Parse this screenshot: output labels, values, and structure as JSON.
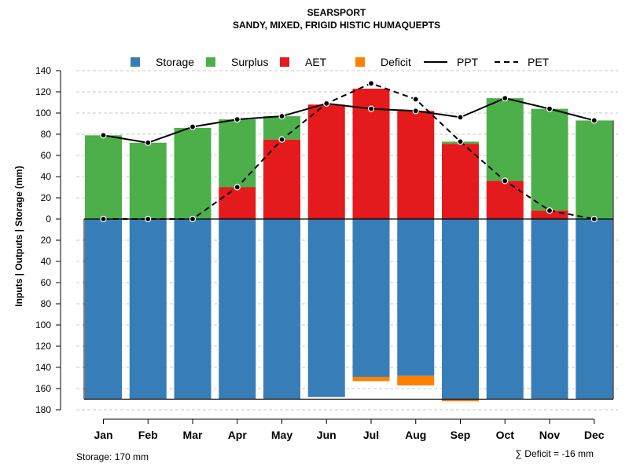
{
  "chart_data": {
    "type": "bar",
    "title": "SEARSPORT",
    "subtitle": "SANDY, MIXED, FRIGID HISTIC HUMAQUEPTS",
    "ylabel": "Inputs | Outputs | Storage     (mm)",
    "categories": [
      "Jan",
      "Feb",
      "Mar",
      "Apr",
      "May",
      "Jun",
      "Jul",
      "Aug",
      "Sep",
      "Oct",
      "Nov",
      "Dec"
    ],
    "ylim": [
      -180,
      140
    ],
    "yticks": [
      140,
      120,
      100,
      80,
      60,
      40,
      20,
      0,
      -20,
      -40,
      -60,
      -80,
      -100,
      -120,
      -140,
      -160,
      -180
    ],
    "ytick_labels": [
      "140",
      "120",
      "100",
      "80",
      "60",
      "40",
      "20",
      "0",
      "20",
      "40",
      "60",
      "80",
      "100",
      "120",
      "140",
      "160",
      "180"
    ],
    "legend": [
      {
        "name": "Storage",
        "kind": "box",
        "color": "#377EB8"
      },
      {
        "name": "Surplus",
        "kind": "box",
        "color": "#4DAF4A"
      },
      {
        "name": "AET",
        "kind": "box",
        "color": "#E41A1C"
      },
      {
        "name": "Deficit",
        "kind": "box",
        "color": "#FF7F00"
      },
      {
        "name": "PPT",
        "kind": "solid",
        "color": "#000000"
      },
      {
        "name": "PET",
        "kind": "dashed",
        "color": "#000000"
      }
    ],
    "series": {
      "AET": [
        0,
        0,
        0,
        30,
        75,
        108,
        123,
        102,
        71,
        36,
        8,
        0
      ],
      "Surplus": [
        79,
        72,
        86,
        64,
        22,
        0,
        0,
        0,
        2,
        78,
        96,
        93
      ],
      "Storage": [
        170,
        170,
        170,
        170,
        170,
        168,
        149,
        148,
        170,
        170,
        170,
        170
      ],
      "Deficit": [
        0,
        0,
        0,
        0,
        0,
        0,
        4,
        9,
        2,
        0,
        0,
        0
      ],
      "PPT": [
        79,
        72,
        87,
        94,
        97,
        109,
        104,
        102,
        96,
        114,
        104,
        93
      ],
      "PET": [
        0,
        0,
        0,
        30,
        75,
        109,
        128,
        113,
        73,
        36,
        8,
        0
      ]
    },
    "footer_left": "Storage: 170 mm",
    "footer_right": "∑ Deficit = -16 mm"
  }
}
